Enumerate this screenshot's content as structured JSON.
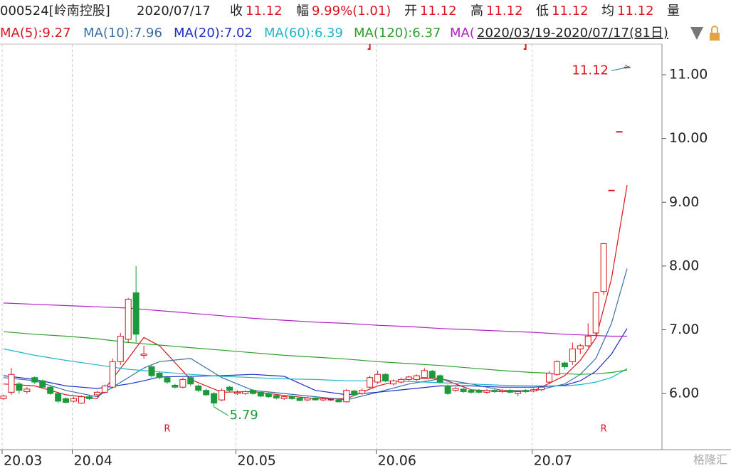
{
  "header": {
    "code": "000524[岭南控股]",
    "date": "2020/07/17",
    "items": [
      {
        "label": "收",
        "value": "11.12"
      },
      {
        "label": "幅",
        "value": "9.99%(1.01)"
      },
      {
        "label": "开",
        "value": "11.12"
      },
      {
        "label": "高",
        "value": "11.12"
      },
      {
        "label": "低",
        "value": "11.12"
      },
      {
        "label": "均",
        "value": "11.12"
      },
      {
        "label": "量",
        "value": null
      }
    ],
    "range": "2020/03/19-2020/07/17(81日)"
  },
  "chart_data": {
    "type": "candlestick",
    "categories": [
      "20.03",
      null,
      null,
      null,
      null,
      null,
      null,
      null,
      null,
      "20.04",
      null,
      null,
      null,
      null,
      null,
      null,
      null,
      null,
      null,
      null,
      null,
      null,
      null,
      null,
      null,
      null,
      null,
      null,
      null,
      null,
      "20.05",
      null,
      null,
      null,
      null,
      null,
      null,
      null,
      null,
      null,
      null,
      null,
      null,
      null,
      null,
      null,
      null,
      null,
      "20.06",
      null,
      null,
      null,
      null,
      null,
      null,
      null,
      null,
      null,
      null,
      null,
      null,
      null,
      null,
      null,
      null,
      null,
      null,
      null,
      "20.07",
      null,
      null,
      null,
      null,
      null,
      null,
      null,
      null,
      null,
      null,
      null,
      null
    ],
    "open": [
      5.92,
      6.02,
      6.15,
      6.03,
      6.25,
      6.2,
      6.1,
      6.0,
      5.92,
      5.88,
      5.85,
      5.95,
      5.98,
      6.02,
      6.1,
      6.5,
      6.85,
      7.58,
      6.6,
      6.42,
      6.32,
      6.25,
      6.13,
      6.1,
      6.25,
      6.12,
      6.05,
      6.0,
      5.9,
      6.1,
      6.0,
      6.0,
      6.05,
      6.02,
      6.0,
      5.97,
      5.92,
      5.95,
      5.93,
      5.9,
      5.93,
      5.9,
      5.9,
      5.9,
      5.87,
      6.04,
      6.0,
      6.1,
      6.18,
      6.3,
      6.15,
      6.18,
      6.22,
      6.22,
      6.25,
      6.35,
      6.28,
      6.12,
      6.05,
      6.07,
      6.05,
      6.05,
      6.02,
      6.05,
      6.03,
      6.05,
      6.0,
      6.05,
      6.04,
      6.06,
      6.18,
      6.3,
      6.48,
      6.5,
      6.7,
      6.75,
      6.95,
      7.6,
      9.19,
      10.11,
      11.12
    ],
    "high": [
      5.98,
      6.4,
      6.18,
      6.1,
      6.27,
      6.22,
      6.12,
      6.02,
      5.94,
      5.95,
      5.97,
      5.98,
      6.04,
      6.14,
      6.55,
      6.95,
      7.5,
      8.0,
      6.75,
      6.45,
      6.35,
      6.28,
      6.15,
      6.25,
      6.28,
      6.14,
      6.08,
      6.02,
      6.08,
      6.12,
      6.05,
      6.05,
      6.07,
      6.04,
      6.02,
      5.99,
      5.97,
      5.97,
      5.95,
      5.95,
      5.95,
      5.94,
      5.93,
      5.92,
      6.07,
      6.06,
      6.08,
      6.28,
      6.36,
      6.32,
      6.22,
      6.25,
      6.28,
      6.3,
      6.4,
      6.37,
      6.3,
      6.14,
      6.1,
      6.09,
      6.07,
      6.07,
      6.07,
      6.07,
      6.07,
      6.07,
      6.05,
      6.07,
      6.08,
      6.12,
      6.35,
      6.52,
      6.5,
      6.8,
      6.78,
      7.1,
      7.6,
      8.35,
      9.19,
      10.11,
      11.12
    ],
    "low": [
      5.9,
      5.98,
      6.0,
      6.0,
      6.15,
      6.08,
      5.98,
      5.85,
      5.85,
      5.86,
      5.84,
      5.9,
      5.96,
      6.0,
      6.08,
      6.45,
      6.8,
      6.8,
      6.55,
      6.25,
      6.22,
      6.15,
      6.08,
      6.08,
      6.12,
      6.02,
      5.96,
      5.79,
      5.88,
      6.02,
      5.98,
      5.98,
      5.98,
      5.94,
      5.93,
      5.91,
      5.9,
      5.9,
      5.88,
      5.88,
      5.89,
      5.88,
      5.88,
      5.86,
      5.86,
      5.97,
      5.98,
      6.08,
      6.15,
      6.18,
      6.13,
      6.16,
      6.2,
      6.2,
      6.23,
      6.23,
      6.16,
      5.98,
      6.03,
      6.01,
      6.0,
      6.0,
      6.0,
      6.01,
      6.01,
      6.0,
      5.96,
      6.01,
      6.02,
      6.04,
      6.15,
      6.28,
      6.38,
      6.45,
      6.62,
      6.72,
      6.9,
      7.55,
      9.19,
      10.11,
      11.12
    ],
    "close": [
      5.96,
      6.3,
      6.05,
      6.07,
      6.18,
      6.1,
      6.0,
      5.88,
      5.86,
      5.92,
      5.95,
      5.92,
      6.02,
      6.12,
      6.5,
      6.9,
      7.48,
      6.93,
      6.62,
      6.28,
      6.25,
      6.18,
      6.1,
      6.22,
      6.15,
      6.05,
      5.98,
      5.85,
      6.05,
      6.05,
      6.02,
      6.03,
      6.0,
      5.96,
      5.95,
      5.93,
      5.95,
      5.92,
      5.89,
      5.93,
      5.9,
      5.92,
      5.91,
      5.87,
      6.05,
      5.98,
      6.05,
      6.25,
      6.3,
      6.2,
      6.2,
      6.22,
      6.26,
      6.28,
      6.36,
      6.25,
      6.18,
      6.0,
      6.08,
      6.03,
      6.02,
      6.02,
      6.05,
      6.03,
      6.05,
      6.02,
      6.03,
      6.03,
      6.06,
      6.1,
      6.32,
      6.5,
      6.42,
      6.7,
      6.75,
      6.9,
      7.58,
      8.35,
      9.19,
      10.11,
      11.12
    ],
    "up_color": "#d8141c",
    "down_color": "#1a9a3a",
    "lines": [
      {
        "name": "MA(5):9.27",
        "color": "#d8141c",
        "x": [
          0,
          4,
          8,
          12,
          16,
          18,
          20,
          24,
          28,
          32,
          36,
          40,
          44,
          48,
          52,
          56,
          60,
          64,
          68,
          72,
          74,
          76,
          78,
          80
        ],
        "values": [
          6.15,
          6.12,
          5.98,
          5.92,
          6.55,
          6.88,
          6.75,
          6.22,
          6.02,
          6.03,
          5.97,
          5.92,
          5.92,
          6.12,
          6.24,
          6.24,
          6.06,
          6.03,
          6.04,
          6.28,
          6.52,
          6.87,
          7.8,
          9.27
        ]
      },
      {
        "name": "MA(10):7.96",
        "color": "#3a6ea5",
        "x": [
          0,
          4,
          8,
          12,
          16,
          18,
          20,
          24,
          28,
          32,
          36,
          40,
          44,
          48,
          52,
          56,
          60,
          64,
          68,
          72,
          74,
          76,
          78,
          80
        ],
        "values": [
          6.25,
          6.2,
          6.05,
          5.95,
          6.25,
          6.4,
          6.5,
          6.55,
          6.25,
          6.05,
          6.0,
          5.95,
          5.9,
          6.02,
          6.15,
          6.23,
          6.15,
          6.05,
          6.04,
          6.15,
          6.3,
          6.55,
          7.1,
          7.96
        ]
      },
      {
        "name": "MA(20):7.02",
        "color": "#1b2fc4",
        "x": [
          0,
          4,
          8,
          12,
          16,
          18,
          20,
          24,
          28,
          32,
          36,
          40,
          44,
          48,
          52,
          56,
          60,
          64,
          68,
          72,
          74,
          76,
          78,
          80
        ],
        "values": [
          6.28,
          6.22,
          6.12,
          6.08,
          6.15,
          6.2,
          6.26,
          6.27,
          6.28,
          6.3,
          6.27,
          6.05,
          5.98,
          6.02,
          6.07,
          6.12,
          6.12,
          6.1,
          6.1,
          6.13,
          6.2,
          6.35,
          6.62,
          7.02
        ]
      },
      {
        "name": "MA(60):6.39",
        "color": "#1fb5c9",
        "x": [
          0,
          4,
          8,
          12,
          16,
          18,
          20,
          24,
          28,
          32,
          36,
          40,
          44,
          48,
          52,
          56,
          60,
          64,
          68,
          72,
          74,
          76,
          78,
          80
        ],
        "values": [
          6.7,
          6.6,
          6.52,
          6.45,
          6.38,
          6.36,
          6.34,
          6.3,
          6.27,
          6.25,
          6.23,
          6.22,
          6.2,
          6.2,
          6.19,
          6.17,
          6.15,
          6.13,
          6.12,
          6.12,
          6.14,
          6.18,
          6.25,
          6.39
        ]
      },
      {
        "name": "MA(120):6.37",
        "color": "#2ca02c",
        "x": [
          0,
          4,
          8,
          12,
          16,
          18,
          20,
          24,
          28,
          32,
          36,
          40,
          44,
          48,
          52,
          56,
          60,
          64,
          68,
          72,
          74,
          76,
          78,
          80
        ],
        "values": [
          6.97,
          6.93,
          6.9,
          6.86,
          6.8,
          6.78,
          6.76,
          6.72,
          6.68,
          6.64,
          6.6,
          6.57,
          6.54,
          6.5,
          6.47,
          6.44,
          6.4,
          6.36,
          6.33,
          6.31,
          6.3,
          6.31,
          6.33,
          6.37
        ]
      },
      {
        "name": "MA(",
        "color": "#b21fc9",
        "x": [
          0,
          4,
          8,
          12,
          16,
          18,
          20,
          24,
          28,
          32,
          36,
          40,
          44,
          48,
          52,
          56,
          60,
          64,
          68,
          72,
          74,
          76,
          78,
          80
        ],
        "values": [
          7.42,
          7.4,
          7.38,
          7.36,
          7.34,
          7.32,
          7.3,
          7.26,
          7.22,
          7.18,
          7.15,
          7.12,
          7.1,
          7.07,
          7.05,
          7.02,
          7.0,
          6.98,
          6.96,
          6.93,
          6.92,
          6.91,
          6.9,
          6.9
        ]
      }
    ],
    "ylim": [
      5.12,
      11.48
    ],
    "yticks": [
      {
        "value": 6,
        "label": "6.00"
      },
      {
        "value": 7,
        "label": "7.00"
      },
      {
        "value": 8,
        "label": "8.00"
      },
      {
        "value": 9,
        "label": "9.00"
      },
      {
        "value": 10,
        "label": "10.00"
      },
      {
        "value": 11,
        "label": "11.00"
      }
    ],
    "low_mark": {
      "index": 27,
      "value": 5.79
    },
    "high_mark": {
      "index": 80,
      "value": 11.12
    },
    "markers": [
      {
        "index": 21,
        "text": "R"
      },
      {
        "index": 77,
        "text": "R"
      }
    ],
    "events": [
      47,
      67
    ]
  },
  "watermark": "格隆汇"
}
